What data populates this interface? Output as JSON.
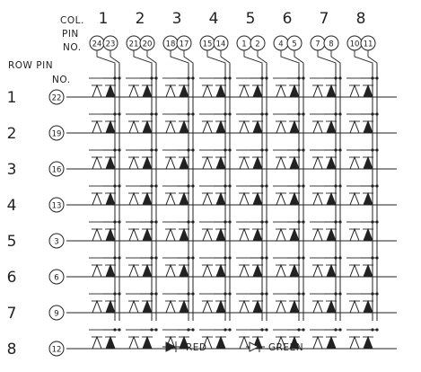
{
  "header": {
    "col_label": "COL.",
    "pin_label": "PIN",
    "no_label": "NO."
  },
  "row_header": {
    "row_pin_label": "ROW PIN",
    "no_label": "NO."
  },
  "columns": [
    {
      "number": "1",
      "pins": [
        "24",
        "23"
      ]
    },
    {
      "number": "2",
      "pins": [
        "21",
        "20"
      ]
    },
    {
      "number": "3",
      "pins": [
        "18",
        "17"
      ]
    },
    {
      "number": "4",
      "pins": [
        "15",
        "14"
      ]
    },
    {
      "number": "5",
      "pins": [
        "1",
        "2"
      ]
    },
    {
      "number": "6",
      "pins": [
        "4",
        "5"
      ]
    },
    {
      "number": "7",
      "pins": [
        "7",
        "8"
      ]
    },
    {
      "number": "8",
      "pins": [
        "10",
        "11"
      ]
    }
  ],
  "rows": [
    {
      "number": "1",
      "pin": "22"
    },
    {
      "number": "2",
      "pin": "19"
    },
    {
      "number": "3",
      "pin": "16"
    },
    {
      "number": "4",
      "pin": "13"
    },
    {
      "number": "5",
      "pin": "3"
    },
    {
      "number": "6",
      "pin": "6"
    },
    {
      "number": "7",
      "pin": "9"
    },
    {
      "number": "8",
      "pin": "12"
    }
  ],
  "legend": {
    "red_label": "RED",
    "green_label": "GREEN"
  }
}
